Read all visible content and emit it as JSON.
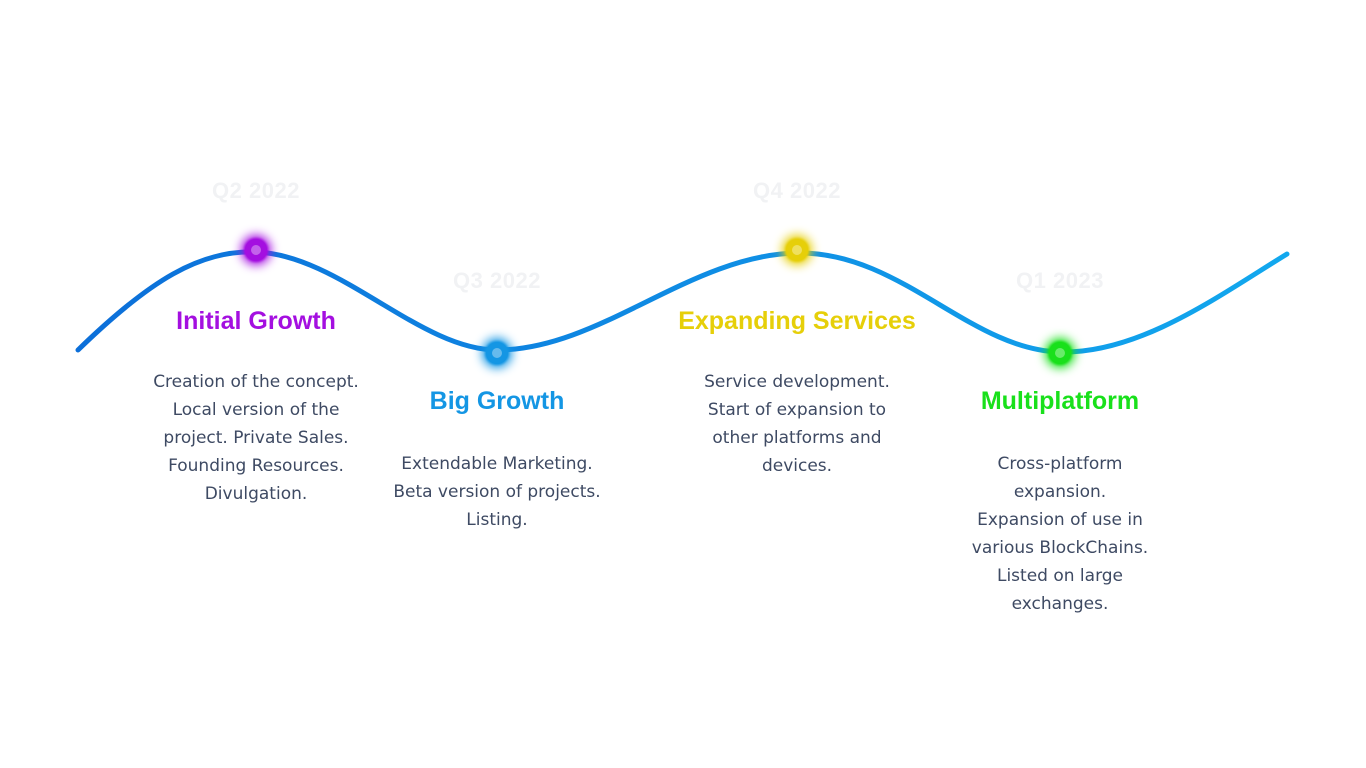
{
  "colors": {
    "wave_start": "#0c6fd9",
    "wave_end": "#12a8ee",
    "date_text": "#f1f2f4",
    "body_text": "#3e4a63"
  },
  "milestones": [
    {
      "date": "Q2 2022",
      "title": "Initial Growth",
      "color": "#a40fe0",
      "lines": [
        "Creation of the concept.",
        "Local version of the",
        "project. Private Sales.",
        "Founding Resources.",
        "Divulgation."
      ]
    },
    {
      "date": "Q3 2022",
      "title": "Big Growth",
      "color": "#1496e4",
      "lines": [
        "Extendable Marketing.",
        "Beta version of projects.",
        "Listing."
      ]
    },
    {
      "date": "Q4 2022",
      "title": "Expanding Services",
      "color": "#e6cf09",
      "lines": [
        "Service development.",
        "Start of expansion to",
        "other platforms and",
        "devices."
      ]
    },
    {
      "date": "Q1 2023",
      "title": "Multiplatform",
      "color": "#19e01b",
      "lines": [
        "Cross-platform",
        "expansion.",
        "Expansion of use in",
        "various BlockChains.",
        "Listed on large",
        "exchanges."
      ]
    }
  ]
}
